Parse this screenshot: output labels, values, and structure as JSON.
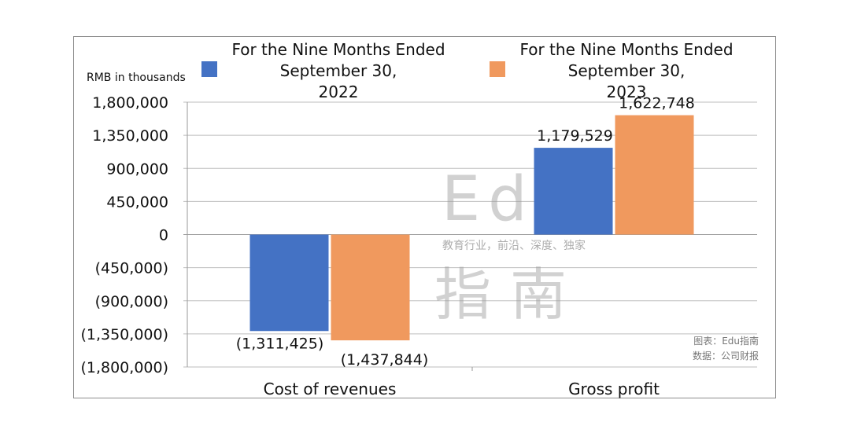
{
  "chart_data": {
    "type": "bar",
    "unit_label": "RMB in thousands",
    "categories": [
      "Cost of revenues",
      "Gross profit"
    ],
    "series": [
      {
        "name": "For the Nine Months Ended September 30, 2022",
        "name_lines": [
          "For the Nine Months Ended",
          "September 30,",
          "2022"
        ],
        "color": "#4472c4",
        "values": [
          -1311425,
          1179529
        ],
        "labels": [
          "(1,311,425)",
          "1,179,529"
        ]
      },
      {
        "name": "For the Nine Months Ended September 30, 2023",
        "name_lines": [
          "For the Nine Months Ended",
          "September 30,",
          "2023"
        ],
        "color": "#f0995e",
        "values": [
          -1437844,
          1622748
        ],
        "labels": [
          "(1,437,844)",
          "1,622,748"
        ]
      }
    ],
    "ylim": [
      -1800000,
      1800000
    ],
    "yticks": [
      {
        "value": 1800000,
        "label": "1,800,000"
      },
      {
        "value": 1350000,
        "label": "1,350,000"
      },
      {
        "value": 900000,
        "label": "900,000"
      },
      {
        "value": 450000,
        "label": "450,000"
      },
      {
        "value": 0,
        "label": "0"
      },
      {
        "value": -450000,
        "label": "(450,000)"
      },
      {
        "value": -900000,
        "label": "(900,000)"
      },
      {
        "value": -1350000,
        "label": "(1,350,000)"
      },
      {
        "value": -1800000,
        "label": "(1,800,000)"
      }
    ],
    "grid": true,
    "legend_position": "top"
  },
  "watermark": {
    "big_1": "Edu",
    "tagline": "教育行业，前沿、深度、独家",
    "big_2": "指南"
  },
  "source_note": {
    "line1": "图表：Edu指南",
    "line2": "数据：公司财报"
  }
}
